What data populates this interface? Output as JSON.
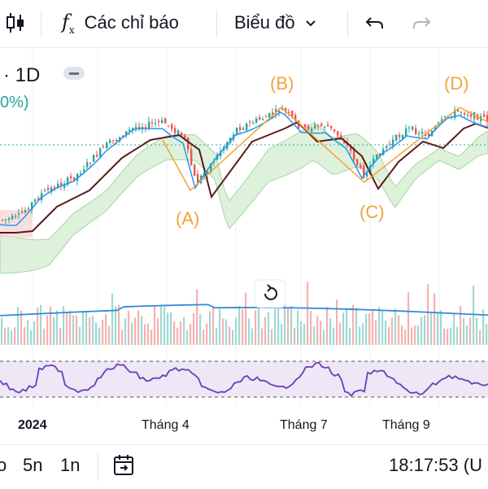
{
  "toolbar": {
    "candle_icon": "candlestick-icon",
    "indicators_label": "Các chỉ báo",
    "chart_type_label": "Biểu đồ",
    "undo_icon": "undo-icon",
    "redo_icon": "redo-icon"
  },
  "legend": {
    "interval": "· 1D",
    "change": "0%)"
  },
  "waves": [
    "(A)",
    "(B)",
    "(C)",
    "(D)"
  ],
  "time_axis": [
    "2024",
    "Tháng 4",
    "Tháng 7",
    "Tháng 9"
  ],
  "bottom_bar": {
    "range_partial": "o",
    "range_5n": "5n",
    "range_1n": "1n",
    "goto_icon": "go-to-date-icon",
    "time": "18:17:53 (U"
  },
  "colors": {
    "accent_wave": "#f2a33a",
    "up": "#26a69a",
    "down": "#ef5350",
    "kijun": "#5b1a1a",
    "tenkan": "#2196f3",
    "rsi_line": "#6a3fb5",
    "rsi_band": "#ede7f6",
    "cloud_up": "#d8efd4",
    "cloud_down": "#f7d6d6"
  }
}
